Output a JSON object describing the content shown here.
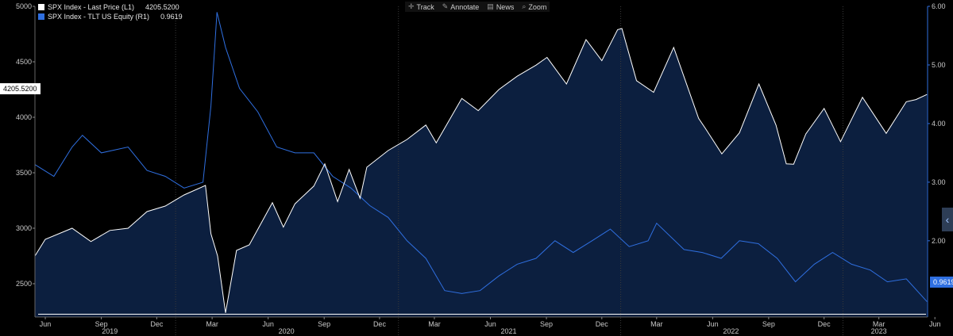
{
  "toolbar": {
    "track": "Track",
    "annotate": "Annotate",
    "news": "News",
    "zoom": "Zoom"
  },
  "chart_data": {
    "type": "area",
    "title": "",
    "x_range": [
      "2019-05-15",
      "2023-05-20"
    ],
    "x_ticks": [
      {
        "date": "2019-06-01",
        "label": "Jun"
      },
      {
        "date": "2019-09-01",
        "label": "Sep"
      },
      {
        "date": "2019-12-01",
        "label": "Dec"
      },
      {
        "date": "2020-03-01",
        "label": "Mar"
      },
      {
        "date": "2020-06-01",
        "label": "Jun"
      },
      {
        "date": "2020-09-01",
        "label": "Sep"
      },
      {
        "date": "2020-12-01",
        "label": "Dec"
      },
      {
        "date": "2021-03-01",
        "label": "Mar"
      },
      {
        "date": "2021-06-01",
        "label": "Jun"
      },
      {
        "date": "2021-09-01",
        "label": "Sep"
      },
      {
        "date": "2021-12-01",
        "label": "Dec"
      },
      {
        "date": "2022-03-01",
        "label": "Mar"
      },
      {
        "date": "2022-06-01",
        "label": "Jun"
      },
      {
        "date": "2022-09-01",
        "label": "Sep"
      },
      {
        "date": "2022-12-01",
        "label": "Dec"
      },
      {
        "date": "2023-03-01",
        "label": "Mar"
      },
      {
        "date": "2023-06-01",
        "label": "Jun"
      }
    ],
    "year_labels": [
      {
        "date": "2019-09-15",
        "label": "2019"
      },
      {
        "date": "2020-07-01",
        "label": "2020"
      },
      {
        "date": "2021-07-01",
        "label": "2021"
      },
      {
        "date": "2022-07-01",
        "label": "2022"
      },
      {
        "date": "2023-03-01",
        "label": "2023"
      }
    ],
    "year_dividers": [
      "2020-01-01",
      "2021-01-01",
      "2022-01-01",
      "2023-01-01"
    ],
    "left_axis": {
      "min": 2200,
      "max": 5000,
      "ticks": [
        2500,
        3000,
        3500,
        4000,
        4500,
        5000
      ]
    },
    "right_axis": {
      "min": 0.7,
      "max": 6.0,
      "ticks": [
        "2.00",
        "3.00",
        "4.00",
        "5.00",
        "6.00"
      ]
    },
    "baseline_value": 2225,
    "series": [
      {
        "name": "SPX Index - Last Price (L1)",
        "last_display": "4205.5200",
        "axis": "left",
        "color": "#ffffff",
        "points": [
          [
            "2019-05-15",
            2750
          ],
          [
            "2019-06-01",
            2900
          ],
          [
            "2019-07-15",
            3000
          ],
          [
            "2019-08-15",
            2880
          ],
          [
            "2019-09-15",
            2980
          ],
          [
            "2019-10-15",
            3000
          ],
          [
            "2019-11-15",
            3150
          ],
          [
            "2019-12-15",
            3200
          ],
          [
            "2020-01-15",
            3300
          ],
          [
            "2020-02-19",
            3386
          ],
          [
            "2020-02-28",
            2950
          ],
          [
            "2020-03-10",
            2750
          ],
          [
            "2020-03-23",
            2237
          ],
          [
            "2020-04-10",
            2800
          ],
          [
            "2020-05-01",
            2850
          ],
          [
            "2020-06-08",
            3230
          ],
          [
            "2020-06-26",
            3010
          ],
          [
            "2020-07-15",
            3220
          ],
          [
            "2020-08-15",
            3380
          ],
          [
            "2020-09-02",
            3580
          ],
          [
            "2020-09-23",
            3240
          ],
          [
            "2020-10-12",
            3530
          ],
          [
            "2020-10-30",
            3270
          ],
          [
            "2020-11-10",
            3550
          ],
          [
            "2020-12-15",
            3700
          ],
          [
            "2021-01-15",
            3800
          ],
          [
            "2021-02-15",
            3930
          ],
          [
            "2021-03-04",
            3770
          ],
          [
            "2021-04-15",
            4170
          ],
          [
            "2021-05-12",
            4060
          ],
          [
            "2021-06-15",
            4250
          ],
          [
            "2021-07-15",
            4370
          ],
          [
            "2021-08-15",
            4470
          ],
          [
            "2021-09-02",
            4540
          ],
          [
            "2021-10-04",
            4300
          ],
          [
            "2021-11-05",
            4700
          ],
          [
            "2021-12-01",
            4510
          ],
          [
            "2021-12-27",
            4790
          ],
          [
            "2022-01-03",
            4800
          ],
          [
            "2022-01-27",
            4330
          ],
          [
            "2022-02-24",
            4225
          ],
          [
            "2022-03-29",
            4630
          ],
          [
            "2022-05-09",
            3990
          ],
          [
            "2022-05-20",
            3900
          ],
          [
            "2022-06-16",
            3670
          ],
          [
            "2022-07-15",
            3860
          ],
          [
            "2022-08-16",
            4300
          ],
          [
            "2022-09-13",
            3930
          ],
          [
            "2022-09-30",
            3580
          ],
          [
            "2022-10-12",
            3577
          ],
          [
            "2022-11-01",
            3850
          ],
          [
            "2022-12-01",
            4080
          ],
          [
            "2022-12-28",
            3780
          ],
          [
            "2023-02-02",
            4180
          ],
          [
            "2023-03-13",
            3855
          ],
          [
            "2023-04-15",
            4140
          ],
          [
            "2023-05-01",
            4160
          ],
          [
            "2023-05-19",
            4205.52
          ]
        ]
      },
      {
        "name": "SPX Index - TLT US Equity (R1)",
        "last_display": "0.9619",
        "axis": "right",
        "color": "#2f6fe0",
        "points": [
          [
            "2019-05-15",
            3.3
          ],
          [
            "2019-06-15",
            3.1
          ],
          [
            "2019-07-15",
            3.6
          ],
          [
            "2019-08-01",
            3.8
          ],
          [
            "2019-09-01",
            3.5
          ],
          [
            "2019-10-15",
            3.6
          ],
          [
            "2019-11-15",
            3.2
          ],
          [
            "2019-12-15",
            3.1
          ],
          [
            "2020-01-15",
            2.9
          ],
          [
            "2020-02-15",
            3.0
          ],
          [
            "2020-02-28",
            4.3
          ],
          [
            "2020-03-09",
            5.9
          ],
          [
            "2020-03-23",
            5.3
          ],
          [
            "2020-04-15",
            4.6
          ],
          [
            "2020-05-15",
            4.2
          ],
          [
            "2020-06-15",
            3.6
          ],
          [
            "2020-07-15",
            3.5
          ],
          [
            "2020-08-15",
            3.5
          ],
          [
            "2020-09-15",
            3.1
          ],
          [
            "2020-10-15",
            2.9
          ],
          [
            "2020-11-15",
            2.6
          ],
          [
            "2020-12-15",
            2.4
          ],
          [
            "2021-01-15",
            2.0
          ],
          [
            "2021-02-15",
            1.7
          ],
          [
            "2021-03-18",
            1.15
          ],
          [
            "2021-04-15",
            1.1
          ],
          [
            "2021-05-15",
            1.15
          ],
          [
            "2021-06-15",
            1.4
          ],
          [
            "2021-07-15",
            1.6
          ],
          [
            "2021-08-15",
            1.7
          ],
          [
            "2021-09-15",
            2.0
          ],
          [
            "2021-10-15",
            1.8
          ],
          [
            "2021-11-15",
            2.0
          ],
          [
            "2021-12-15",
            2.2
          ],
          [
            "2022-01-15",
            1.9
          ],
          [
            "2022-02-15",
            2.0
          ],
          [
            "2022-03-01",
            2.3
          ],
          [
            "2022-04-15",
            1.85
          ],
          [
            "2022-05-15",
            1.8
          ],
          [
            "2022-06-15",
            1.7
          ],
          [
            "2022-07-15",
            2.0
          ],
          [
            "2022-08-15",
            1.95
          ],
          [
            "2022-09-15",
            1.7
          ],
          [
            "2022-10-15",
            1.3
          ],
          [
            "2022-11-15",
            1.6
          ],
          [
            "2022-12-15",
            1.8
          ],
          [
            "2023-01-15",
            1.6
          ],
          [
            "2023-02-15",
            1.5
          ],
          [
            "2023-03-15",
            1.3
          ],
          [
            "2023-04-15",
            1.35
          ],
          [
            "2023-05-19",
            0.9619
          ]
        ]
      }
    ]
  }
}
